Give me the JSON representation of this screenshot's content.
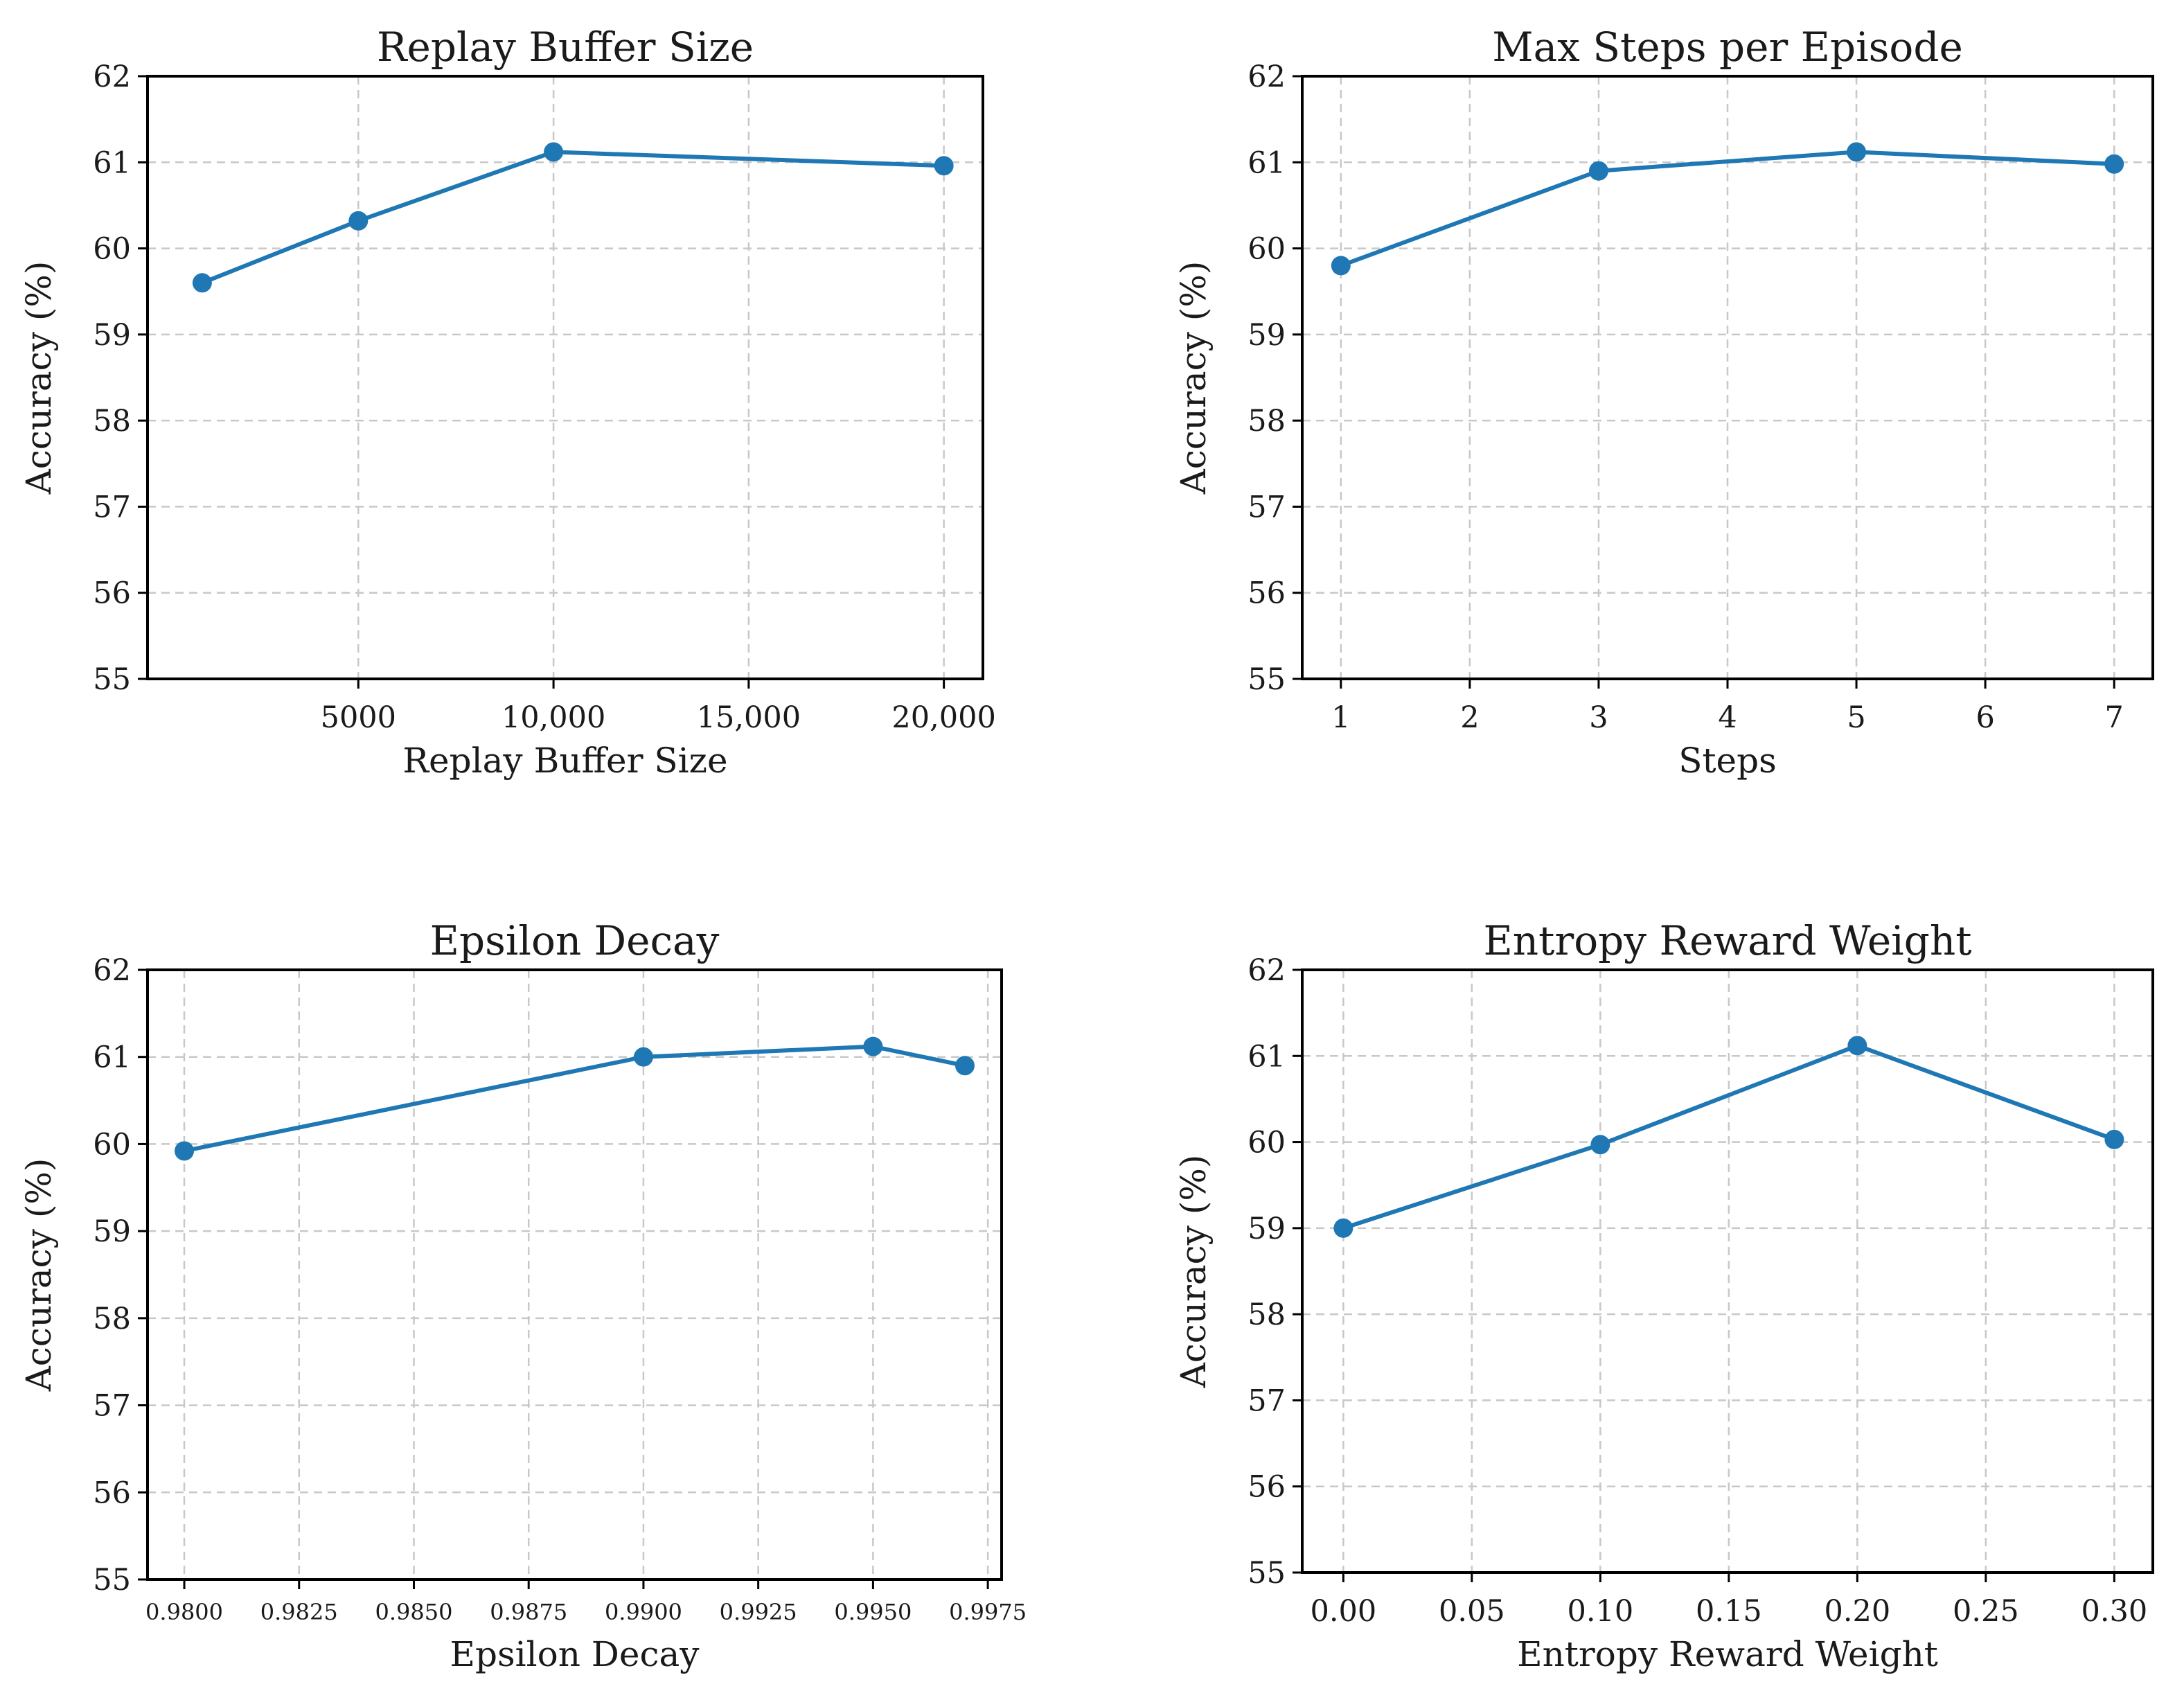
{
  "colors": {
    "series": "#1f77b4"
  },
  "chart_data": [
    {
      "type": "line",
      "title": "Replay Buffer Size",
      "xlabel": "Replay Buffer Size",
      "ylabel": "Accuracy (%)",
      "xlim": [
        -400,
        21000
      ],
      "ylim": [
        55,
        62
      ],
      "xticks": [
        5000,
        10000,
        15000,
        20000
      ],
      "xtick_labels": [
        "5000",
        "10,000",
        "15,000",
        "20,000"
      ],
      "yticks": [
        55,
        56,
        57,
        58,
        59,
        60,
        61,
        62
      ],
      "ytick_labels": [
        "55",
        "56",
        "57",
        "58",
        "59",
        "60",
        "61",
        "62"
      ],
      "grid": true,
      "series": [
        {
          "name": "Accuracy",
          "x": [
            1000,
            5000,
            10000,
            20000
          ],
          "y": [
            59.6,
            60.32,
            61.12,
            60.96
          ]
        }
      ]
    },
    {
      "type": "line",
      "title": "Max Steps per Episode",
      "xlabel": "Steps",
      "ylabel": "Accuracy (%)",
      "xlim": [
        0.7,
        7.3
      ],
      "ylim": [
        55,
        62
      ],
      "xticks": [
        1,
        2,
        3,
        4,
        5,
        6,
        7
      ],
      "xtick_labels": [
        "1",
        "2",
        "3",
        "4",
        "5",
        "6",
        "7"
      ],
      "yticks": [
        55,
        56,
        57,
        58,
        59,
        60,
        61,
        62
      ],
      "ytick_labels": [
        "55",
        "56",
        "57",
        "58",
        "59",
        "60",
        "61",
        "62"
      ],
      "grid": true,
      "series": [
        {
          "name": "Accuracy",
          "x": [
            1,
            3,
            5,
            7
          ],
          "y": [
            59.8,
            60.9,
            61.12,
            60.98
          ]
        }
      ]
    },
    {
      "type": "line",
      "title": "Epsilon Decay",
      "xlabel": "Epsilon Decay",
      "ylabel": "Accuracy (%)",
      "xlim": [
        0.9792,
        0.9978
      ],
      "ylim": [
        55,
        62
      ],
      "xticks": [
        0.98,
        0.9825,
        0.985,
        0.9875,
        0.99,
        0.9925,
        0.995,
        0.9975
      ],
      "xtick_labels": [
        "0.9800",
        "0.9825",
        "0.9850",
        "0.9875",
        "0.9900",
        "0.9925",
        "0.9950",
        "0.9975"
      ],
      "yticks": [
        55,
        56,
        57,
        58,
        59,
        60,
        61,
        62
      ],
      "ytick_labels": [
        "55",
        "56",
        "57",
        "58",
        "59",
        "60",
        "61",
        "62"
      ],
      "grid": true,
      "series": [
        {
          "name": "Accuracy",
          "x": [
            0.98,
            0.99,
            0.995,
            0.997
          ],
          "y": [
            59.92,
            61.0,
            61.12,
            60.9
          ]
        }
      ]
    },
    {
      "type": "line",
      "title": "Entropy Reward Weight",
      "xlabel": "Entropy Reward Weight",
      "ylabel": "Accuracy (%)",
      "xlim": [
        -0.016,
        0.315
      ],
      "ylim": [
        55,
        62
      ],
      "xticks": [
        0,
        0.05,
        0.1,
        0.15,
        0.2,
        0.25,
        0.3
      ],
      "xtick_labels": [
        "0.00",
        "0.05",
        "0.10",
        "0.15",
        "0.20",
        "0.25",
        "0.30"
      ],
      "yticks": [
        55,
        56,
        57,
        58,
        59,
        60,
        61,
        62
      ],
      "ytick_labels": [
        "55",
        "56",
        "57",
        "58",
        "59",
        "60",
        "61",
        "62"
      ],
      "grid": true,
      "series": [
        {
          "name": "Accuracy",
          "x": [
            0,
            0.1,
            0.2,
            0.3
          ],
          "y": [
            59.0,
            59.97,
            61.12,
            60.03
          ]
        }
      ]
    }
  ]
}
